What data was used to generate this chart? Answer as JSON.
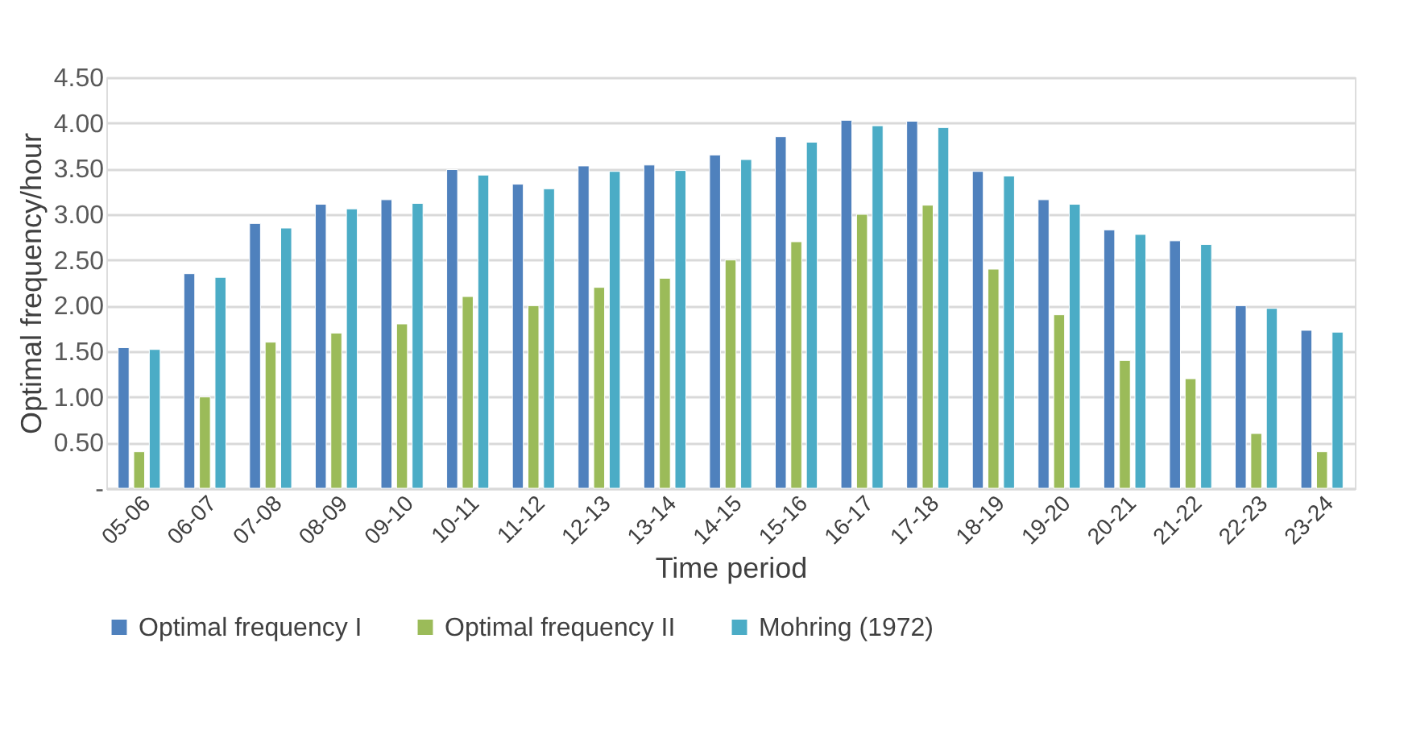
{
  "chart_data": {
    "type": "bar",
    "xlabel": "Time period",
    "ylabel": "Optimal frequency/hour",
    "categories": [
      "05-06",
      "06-07",
      "07-08",
      "08-09",
      "09-10",
      "10-11",
      "11-12",
      "12-13",
      "13-14",
      "14-15",
      "15-16",
      "16-17",
      "17-18",
      "18-19",
      "19-20",
      "20-21",
      "21-22",
      "22-23",
      "23-24"
    ],
    "series": [
      {
        "name": "Optimal frequency I",
        "color": "#4f81bd",
        "values": [
          1.54,
          2.35,
          2.9,
          3.11,
          3.16,
          3.49,
          3.33,
          3.53,
          3.54,
          3.65,
          3.85,
          4.03,
          4.02,
          3.47,
          3.16,
          2.83,
          2.71,
          2.0,
          1.73
        ]
      },
      {
        "name": "Optimal frequency II",
        "color": "#9bbb59",
        "values": [
          0.4,
          1.0,
          1.6,
          1.7,
          1.8,
          2.1,
          2.0,
          2.2,
          2.3,
          2.5,
          2.7,
          3.0,
          3.1,
          2.4,
          1.9,
          1.4,
          1.2,
          0.6,
          0.4
        ]
      },
      {
        "name": "Mohring (1972)",
        "color": "#4bacc6",
        "values": [
          1.52,
          2.31,
          2.85,
          3.06,
          3.12,
          3.43,
          3.28,
          3.47,
          3.48,
          3.6,
          3.79,
          3.97,
          3.95,
          3.42,
          3.11,
          2.78,
          2.67,
          1.97,
          1.71
        ]
      }
    ],
    "ylim": [
      0,
      4.5
    ],
    "yticks": [
      {
        "value": 0,
        "label": "-"
      },
      {
        "value": 0.5,
        "label": "0.50"
      },
      {
        "value": 1,
        "label": "1.00"
      },
      {
        "value": 1.5,
        "label": "1.50"
      },
      {
        "value": 2,
        "label": "2.00"
      },
      {
        "value": 2.5,
        "label": "2.50"
      },
      {
        "value": 3,
        "label": "3.00"
      },
      {
        "value": 3.5,
        "label": "3.50"
      },
      {
        "value": 4,
        "label": "4.00"
      },
      {
        "value": 4.5,
        "label": "4.50"
      }
    ],
    "grid": "y",
    "legend": "bottom"
  }
}
